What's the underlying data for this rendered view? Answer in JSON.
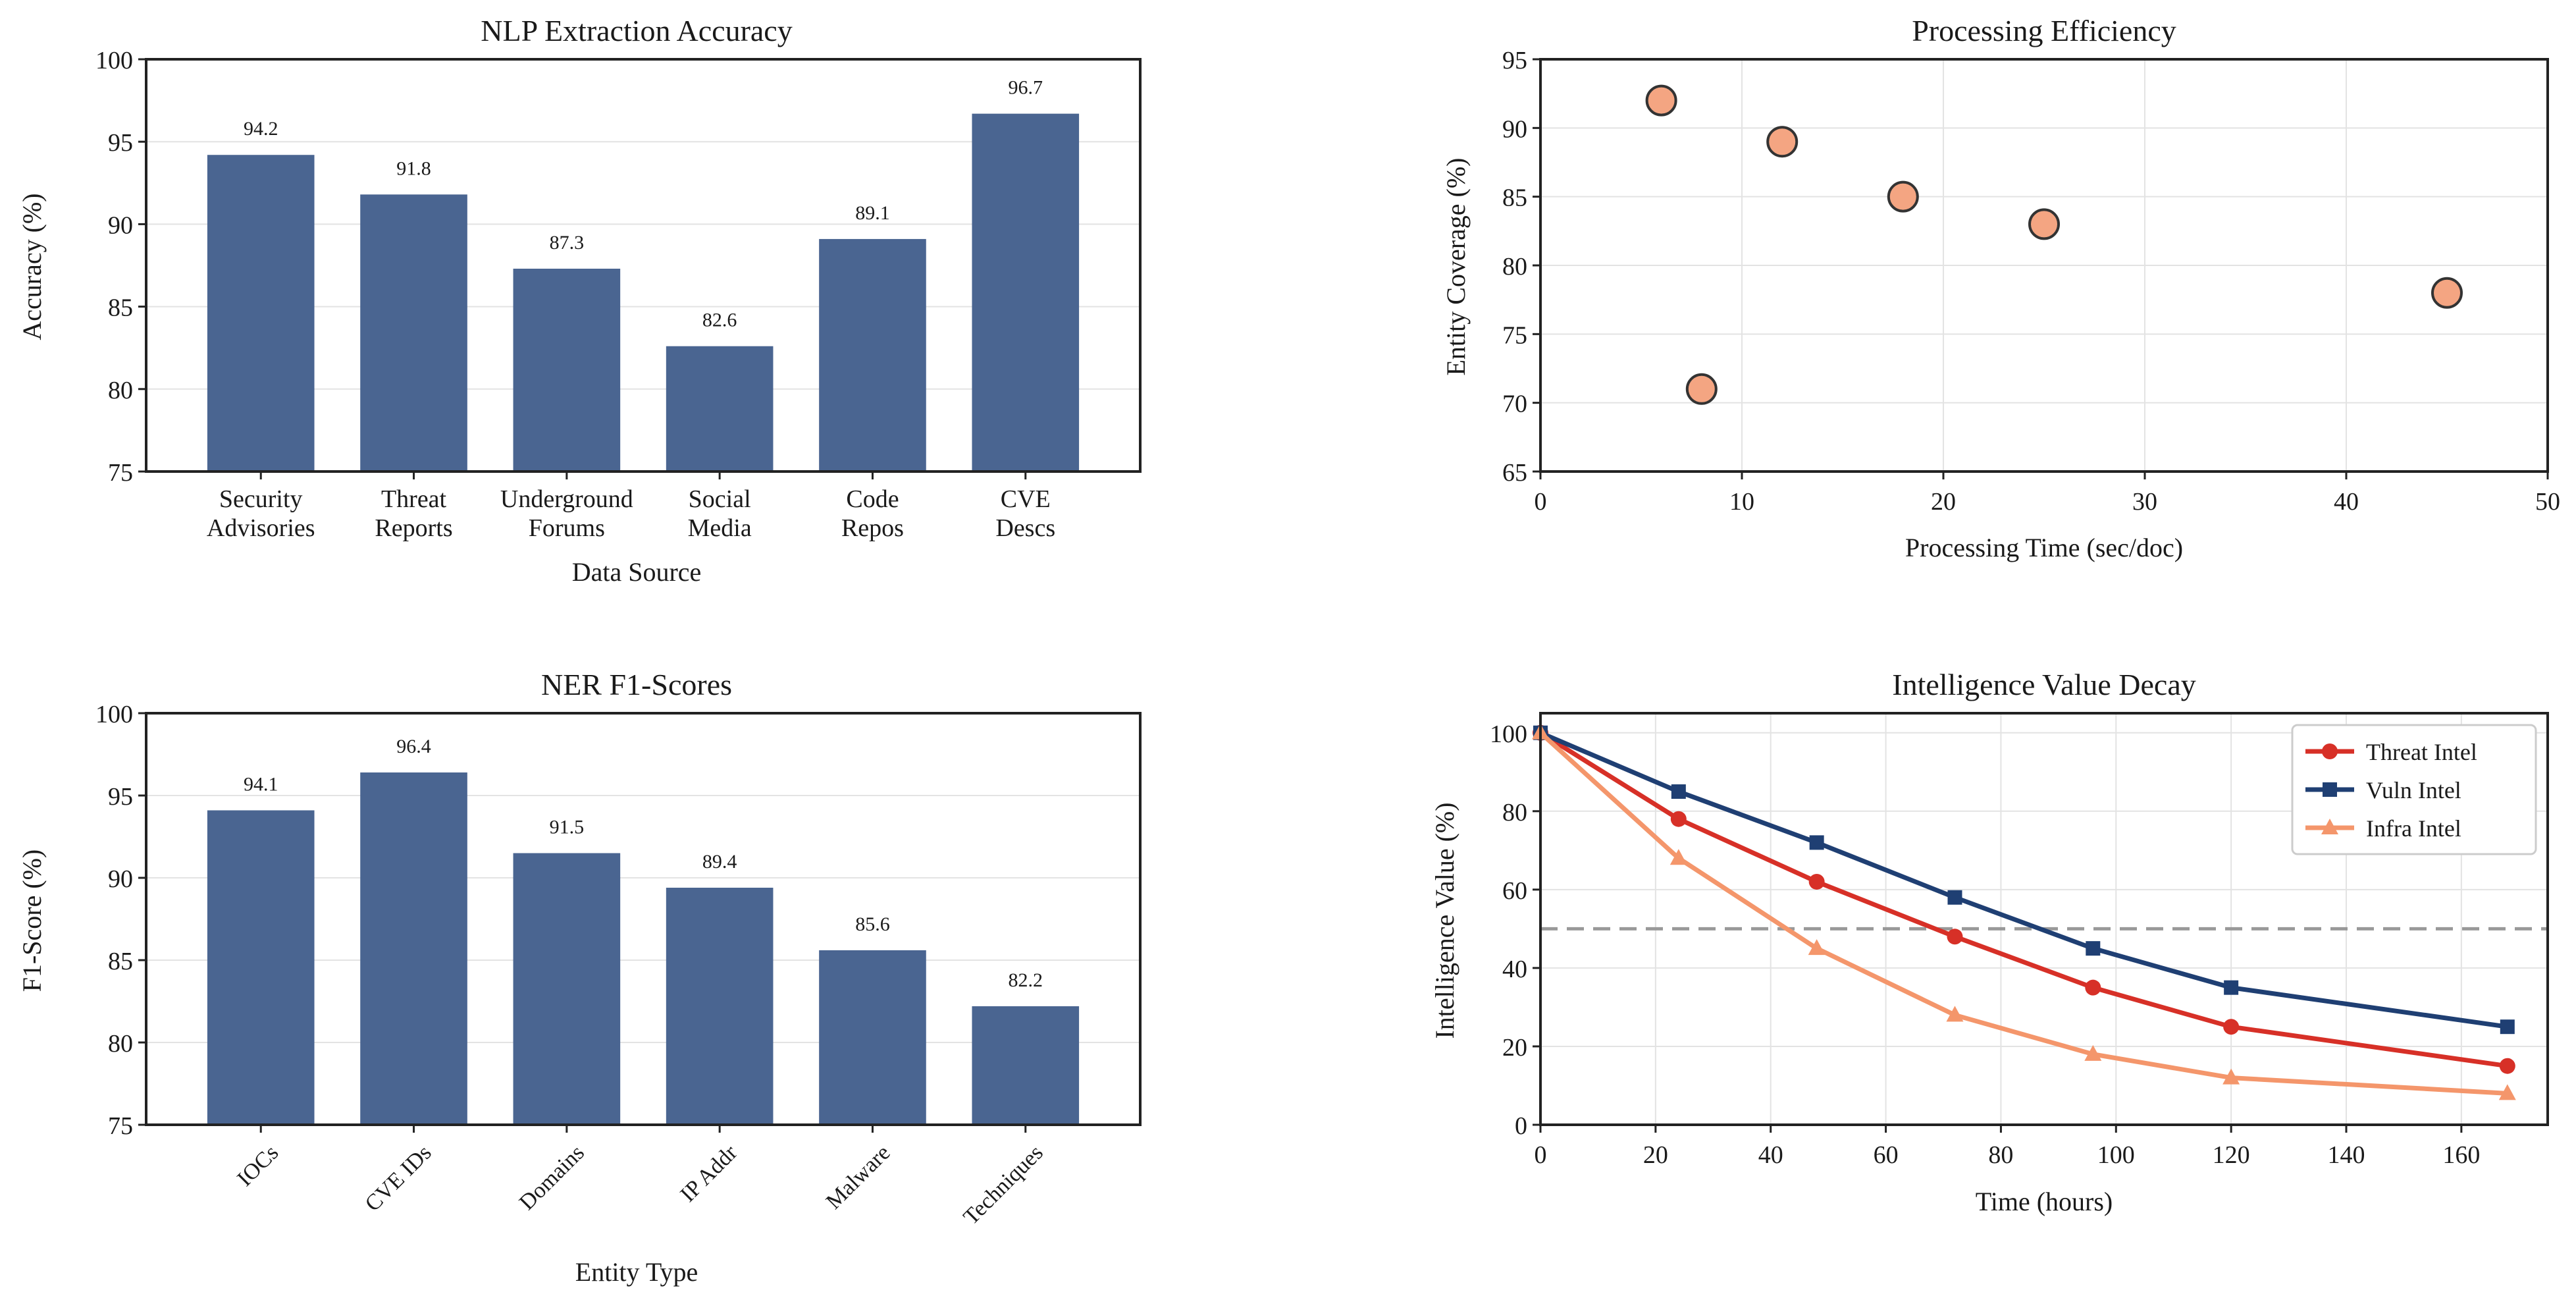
{
  "figure_title": "",
  "chart_data": [
    {
      "type": "bar",
      "title": "NLP Extraction Accuracy",
      "xlabel": "Data Source",
      "ylabel": "Accuracy (%)",
      "categories": [
        "Security Advisories",
        "Threat Reports",
        "Underground Forums",
        "Social Media",
        "Code Repos",
        "CVE Descs"
      ],
      "tick_labels": [
        [
          "Security",
          "Advisories"
        ],
        [
          "Threat",
          "Reports"
        ],
        [
          "Underground",
          "Forums"
        ],
        [
          "Social",
          "Media"
        ],
        [
          "Code",
          "Repos"
        ],
        [
          "CVE",
          "Descs"
        ]
      ],
      "values": [
        94.2,
        91.8,
        87.3,
        82.6,
        89.1,
        96.7
      ],
      "value_labels": [
        "94.2",
        "91.8",
        "87.3",
        "82.6",
        "89.1",
        "96.7"
      ],
      "ylim": [
        75,
        100
      ],
      "yticks": [
        75,
        80,
        85,
        90,
        95,
        100
      ],
      "color": "#4a6591",
      "grid": true
    },
    {
      "type": "scatter",
      "title": "Processing Efficiency",
      "xlabel": "Processing Time (sec/doc)",
      "ylabel": "Entity Coverage (%)",
      "x": [
        6,
        8,
        12,
        18,
        25,
        45
      ],
      "y": [
        92,
        71,
        89,
        85,
        83,
        78
      ],
      "xlim": [
        0,
        50
      ],
      "ylim": [
        65,
        95
      ],
      "xticks": [
        0,
        10,
        20,
        30,
        40,
        50
      ],
      "yticks": [
        65,
        70,
        75,
        80,
        85,
        90,
        95
      ],
      "color": "#f4a582",
      "edge_color": "#333333",
      "grid": true
    },
    {
      "type": "bar",
      "title": "NER F1-Scores",
      "xlabel": "Entity Type",
      "ylabel": "F1-Score (%)",
      "categories": [
        "IOCs",
        "CVE IDs",
        "Domains",
        "IP Addr",
        "Malware",
        "Techniques"
      ],
      "values": [
        94.1,
        96.4,
        91.5,
        89.4,
        85.6,
        82.2
      ],
      "value_labels": [
        "94.1",
        "96.4",
        "91.5",
        "89.4",
        "85.6",
        "82.2"
      ],
      "ylim": [
        75,
        100
      ],
      "yticks": [
        75,
        80,
        85,
        90,
        95,
        100
      ],
      "tick_rotation": 45,
      "color": "#4a6591",
      "grid": true
    },
    {
      "type": "line",
      "title": "Intelligence Value Decay",
      "xlabel": "Time (hours)",
      "ylabel": "Intelligence Value (%)",
      "x": [
        0,
        24,
        48,
        72,
        96,
        120,
        168
      ],
      "series": [
        {
          "name": "Threat Intel",
          "values": [
            100,
            78,
            62,
            48,
            35,
            25,
            15
          ],
          "color": "#d73027",
          "marker": "circle"
        },
        {
          "name": "Vuln Intel",
          "values": [
            100,
            85,
            72,
            58,
            45,
            35,
            25
          ],
          "color": "#1f3f73",
          "marker": "square"
        },
        {
          "name": "Infra Intel",
          "values": [
            100,
            68,
            45,
            28,
            18,
            12,
            8
          ],
          "color": "#f4966b",
          "marker": "triangle"
        }
      ],
      "threshold": 50,
      "threshold_color": "#999999",
      "xlim": [
        0,
        175
      ],
      "ylim": [
        0,
        105
      ],
      "xticks": [
        0,
        20,
        40,
        60,
        80,
        100,
        120,
        140,
        160
      ],
      "yticks": [
        0,
        20,
        40,
        60,
        80,
        100
      ],
      "legend": "top-right",
      "grid": true
    }
  ]
}
